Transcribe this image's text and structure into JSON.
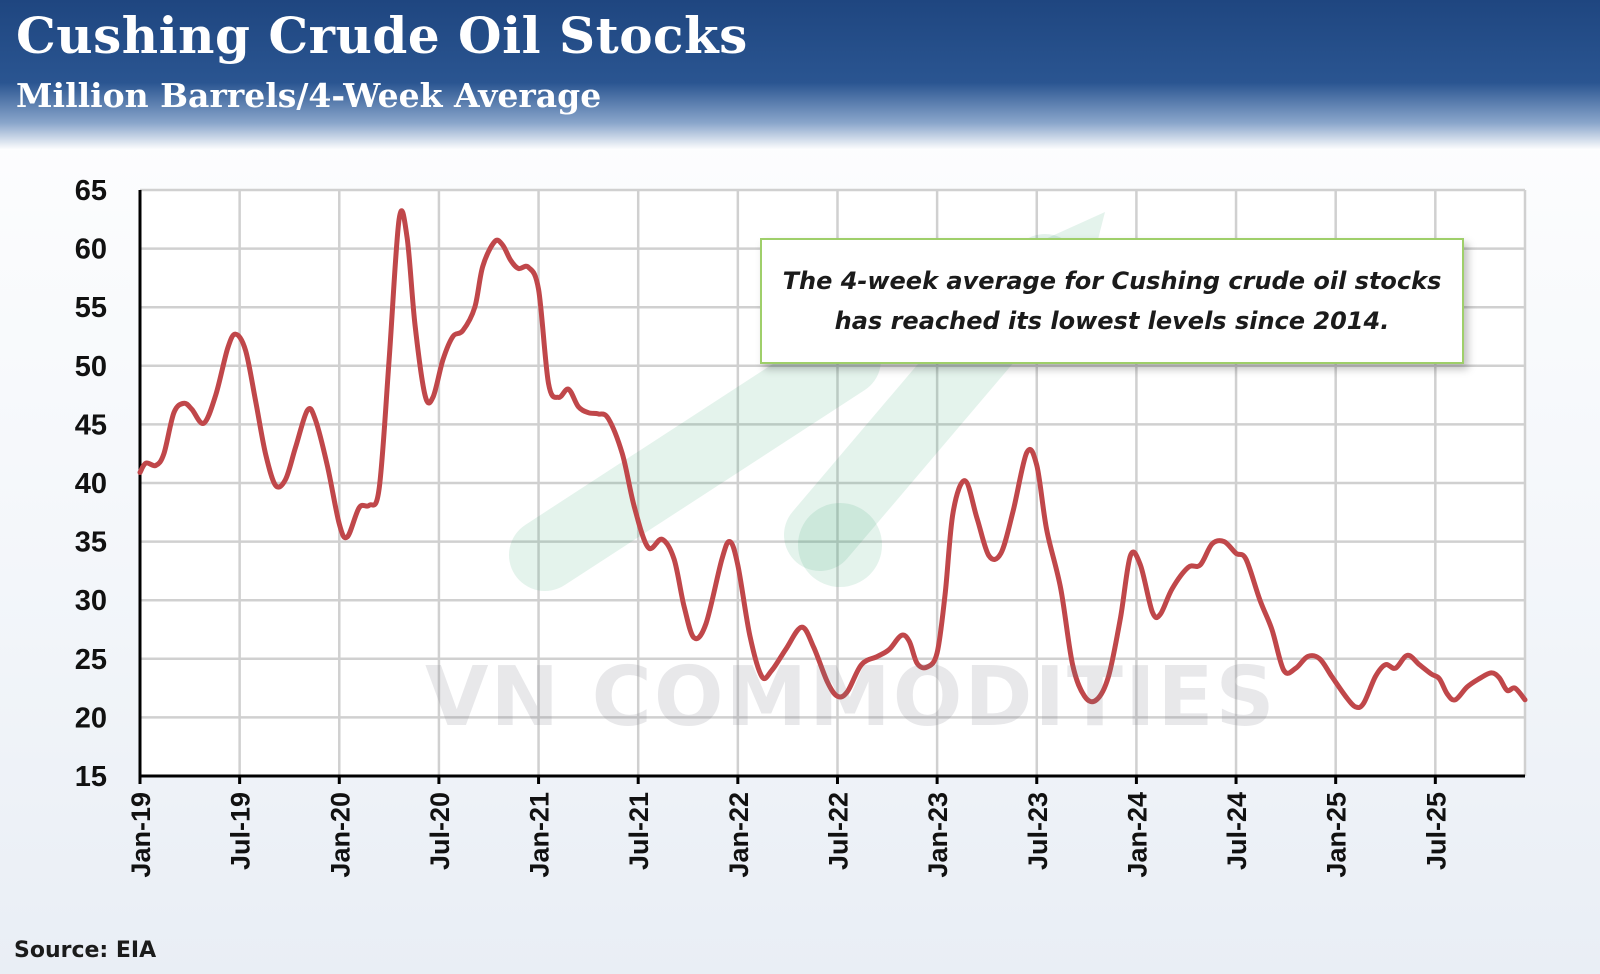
{
  "header": {
    "title": "Cushing Crude Oil Stocks",
    "subtitle": "Million Barrels/4-Week Average"
  },
  "annotation": {
    "line1": "The 4-week average for Cushing crude oil stocks",
    "line2": "has reached its lowest levels since 2014."
  },
  "watermark": "VN COMMODITIES",
  "source": "Source: EIA",
  "colors": {
    "series": "#c0474a",
    "header": "#1f4680",
    "grid": "#d0d0d0",
    "annotation_border": "#9fcf6a",
    "watermark_green": "#2ea36b"
  },
  "chart_data": {
    "type": "line",
    "title": "Cushing Crude Oil Stocks",
    "subtitle": "Million Barrels/4-Week Average",
    "xlabel": "",
    "ylabel": "",
    "ylim": [
      15,
      65
    ],
    "yticks": [
      15,
      20,
      25,
      30,
      35,
      40,
      45,
      50,
      55,
      60,
      65
    ],
    "xlim": [
      2019.0,
      2025.95
    ],
    "xticks": [
      {
        "label": "Jan-19",
        "x": 2019.0
      },
      {
        "label": "Jul-19",
        "x": 2019.5
      },
      {
        "label": "Jan-20",
        "x": 2020.0
      },
      {
        "label": "Jul-20",
        "x": 2020.5
      },
      {
        "label": "Jan-21",
        "x": 2021.0
      },
      {
        "label": "Jul-21",
        "x": 2021.5
      },
      {
        "label": "Jan-22",
        "x": 2022.0
      },
      {
        "label": "Jul-22",
        "x": 2022.5
      },
      {
        "label": "Jan-23",
        "x": 2023.0
      },
      {
        "label": "Jul-23",
        "x": 2023.5
      },
      {
        "label": "Jan-24",
        "x": 2024.0
      },
      {
        "label": "Jul-24",
        "x": 2024.5
      },
      {
        "label": "Jan-25",
        "x": 2025.0
      },
      {
        "label": "Jul-25",
        "x": 2025.5
      }
    ],
    "grid": true,
    "series": [
      {
        "name": "Cushing crude oil stocks (4-week average)",
        "points": [
          [
            2019.0,
            40.9
          ],
          [
            2019.03,
            41.7
          ],
          [
            2019.08,
            41.5
          ],
          [
            2019.12,
            42.5
          ],
          [
            2019.17,
            46.0
          ],
          [
            2019.22,
            46.8
          ],
          [
            2019.26,
            46.3
          ],
          [
            2019.32,
            45.1
          ],
          [
            2019.38,
            47.5
          ],
          [
            2019.44,
            51.5
          ],
          [
            2019.48,
            52.7
          ],
          [
            2019.53,
            51.3
          ],
          [
            2019.58,
            47.0
          ],
          [
            2019.63,
            42.5
          ],
          [
            2019.68,
            39.8
          ],
          [
            2019.73,
            40.3
          ],
          [
            2019.78,
            43.0
          ],
          [
            2019.84,
            46.2
          ],
          [
            2019.88,
            45.4
          ],
          [
            2019.94,
            41.5
          ],
          [
            2020.0,
            36.5
          ],
          [
            2020.04,
            35.4
          ],
          [
            2020.1,
            37.9
          ],
          [
            2020.15,
            38.1
          ],
          [
            2020.2,
            39.5
          ],
          [
            2020.25,
            50.5
          ],
          [
            2020.3,
            62.5
          ],
          [
            2020.34,
            61.0
          ],
          [
            2020.38,
            53.5
          ],
          [
            2020.43,
            47.5
          ],
          [
            2020.47,
            47.3
          ],
          [
            2020.52,
            50.5
          ],
          [
            2020.57,
            52.5
          ],
          [
            2020.62,
            53.0
          ],
          [
            2020.68,
            55.0
          ],
          [
            2020.72,
            58.5
          ],
          [
            2020.78,
            60.6
          ],
          [
            2020.82,
            60.3
          ],
          [
            2020.86,
            59.0
          ],
          [
            2020.9,
            58.3
          ],
          [
            2020.95,
            58.4
          ],
          [
            2021.0,
            56.5
          ],
          [
            2021.05,
            48.5
          ],
          [
            2021.1,
            47.3
          ],
          [
            2021.15,
            48.0
          ],
          [
            2021.2,
            46.5
          ],
          [
            2021.25,
            46.0
          ],
          [
            2021.3,
            45.9
          ],
          [
            2021.35,
            45.5
          ],
          [
            2021.42,
            42.5
          ],
          [
            2021.48,
            38.0
          ],
          [
            2021.55,
            34.5
          ],
          [
            2021.62,
            35.2
          ],
          [
            2021.68,
            33.5
          ],
          [
            2021.73,
            29.5
          ],
          [
            2021.78,
            26.8
          ],
          [
            2021.84,
            28.0
          ],
          [
            2021.92,
            33.5
          ],
          [
            2021.96,
            35.0
          ],
          [
            2022.0,
            33.0
          ],
          [
            2022.06,
            27.0
          ],
          [
            2022.12,
            23.5
          ],
          [
            2022.17,
            24.0
          ],
          [
            2022.24,
            25.8
          ],
          [
            2022.32,
            27.7
          ],
          [
            2022.38,
            26.0
          ],
          [
            2022.45,
            23.0
          ],
          [
            2022.5,
            21.8
          ],
          [
            2022.55,
            22.2
          ],
          [
            2022.62,
            24.5
          ],
          [
            2022.7,
            25.2
          ],
          [
            2022.76,
            25.8
          ],
          [
            2022.82,
            27.0
          ],
          [
            2022.86,
            26.5
          ],
          [
            2022.9,
            24.6
          ],
          [
            2022.95,
            24.3
          ],
          [
            2023.0,
            25.5
          ],
          [
            2023.04,
            30.5
          ],
          [
            2023.08,
            37.5
          ],
          [
            2023.14,
            40.2
          ],
          [
            2023.2,
            37.0
          ],
          [
            2023.26,
            33.8
          ],
          [
            2023.32,
            34.0
          ],
          [
            2023.38,
            37.5
          ],
          [
            2023.45,
            42.6
          ],
          [
            2023.5,
            41.5
          ],
          [
            2023.55,
            36.0
          ],
          [
            2023.62,
            31.0
          ],
          [
            2023.68,
            24.5
          ],
          [
            2023.74,
            21.8
          ],
          [
            2023.8,
            21.5
          ],
          [
            2023.86,
            23.5
          ],
          [
            2023.92,
            28.5
          ],
          [
            2023.97,
            33.8
          ],
          [
            2024.02,
            33.0
          ],
          [
            2024.08,
            29.0
          ],
          [
            2024.12,
            28.8
          ],
          [
            2024.18,
            31.0
          ],
          [
            2024.26,
            32.8
          ],
          [
            2024.32,
            33.0
          ],
          [
            2024.38,
            34.8
          ],
          [
            2024.44,
            35.0
          ],
          [
            2024.5,
            34.0
          ],
          [
            2024.55,
            33.5
          ],
          [
            2024.62,
            30.0
          ],
          [
            2024.68,
            27.5
          ],
          [
            2024.74,
            24.0
          ],
          [
            2024.8,
            24.2
          ],
          [
            2024.86,
            25.2
          ],
          [
            2024.92,
            25.0
          ],
          [
            2024.98,
            23.5
          ],
          [
            2025.05,
            21.8
          ],
          [
            2025.1,
            20.9
          ],
          [
            2025.14,
            21.2
          ],
          [
            2025.2,
            23.5
          ],
          [
            2025.25,
            24.5
          ],
          [
            2025.3,
            24.2
          ],
          [
            2025.36,
            25.3
          ],
          [
            2025.42,
            24.5
          ],
          [
            2025.48,
            23.7
          ],
          [
            2025.52,
            23.3
          ],
          [
            2025.56,
            22.0
          ],
          [
            2025.6,
            21.5
          ],
          [
            2025.66,
            22.6
          ],
          [
            2025.72,
            23.3
          ],
          [
            2025.78,
            23.8
          ],
          [
            2025.82,
            23.4
          ],
          [
            2025.86,
            22.3
          ],
          [
            2025.9,
            22.5
          ],
          [
            2025.95,
            21.5
          ]
        ]
      }
    ]
  }
}
